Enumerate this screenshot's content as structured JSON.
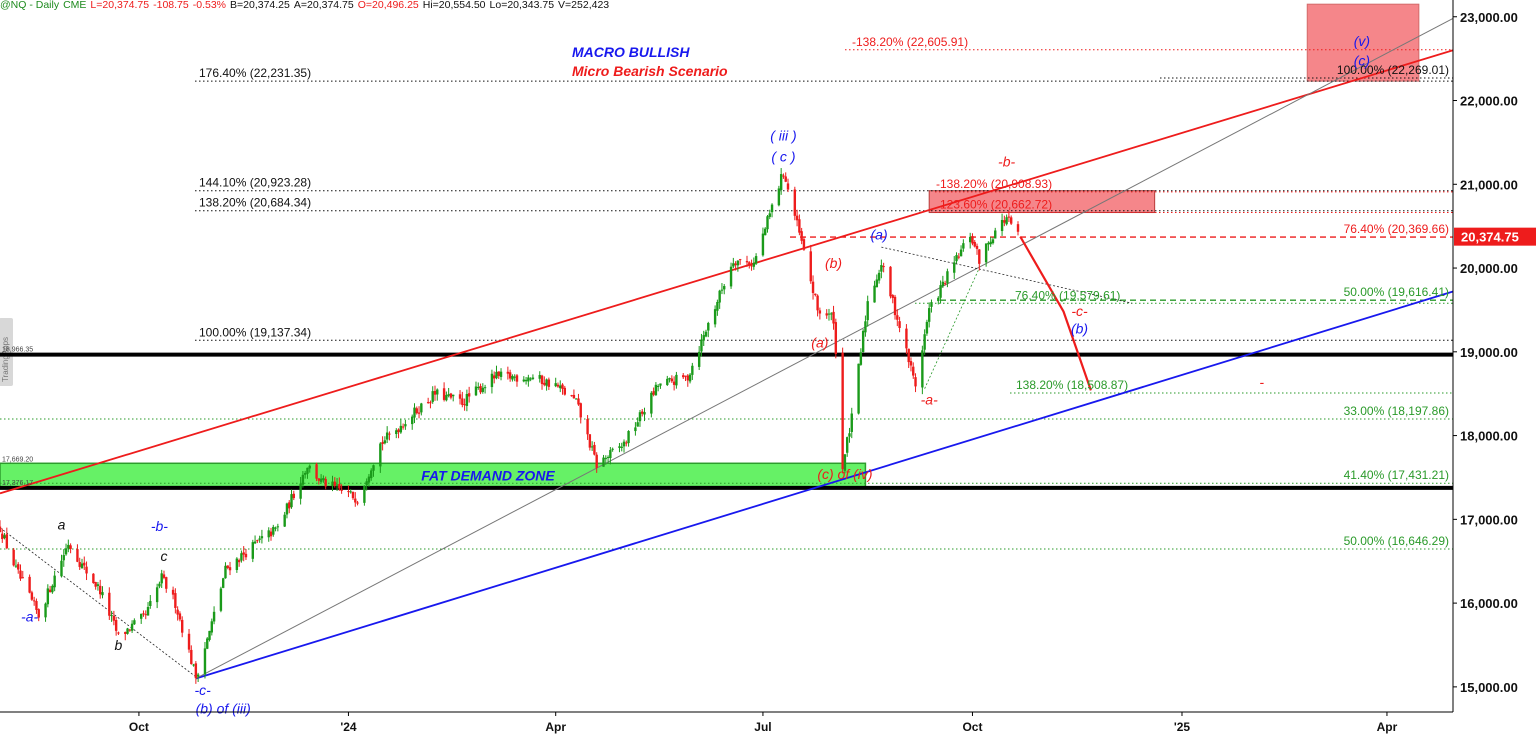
{
  "header": {
    "symbol": "@NQ - Daily",
    "exchange": "CME",
    "last": "L=20,374.75",
    "change": "-108.75",
    "change_pct": "-0.53%",
    "bid": "B=20,374.25",
    "ask": "A=20,374.75",
    "open": "O=20,496.25",
    "high": "Hi=20,554.50",
    "low": "Lo=20,343.75",
    "volume": "V=252,423"
  },
  "watermark": "TradingApps",
  "colors": {
    "red": "#ee1c1c",
    "blue": "#1818ee",
    "green": "#2a9a2a",
    "demand_zone": "#66f166",
    "target_box": "#f5868a",
    "price_tag": "#ee1c1c"
  },
  "chart_data": {
    "type": "candlestick",
    "y_axis": {
      "range": [
        14700,
        23200
      ],
      "ticks": [
        {
          "value": 15000,
          "label": "15,000.00"
        },
        {
          "value": 16000,
          "label": "16,000.00"
        },
        {
          "value": 17000,
          "label": "17,000.00"
        },
        {
          "value": 18000,
          "label": "18,000.00"
        },
        {
          "value": 19000,
          "label": "19,000.00"
        },
        {
          "value": 20000,
          "label": "20,000.00"
        },
        {
          "value": 21000,
          "label": "21,000.00"
        },
        {
          "value": 22000,
          "label": "22,000.00"
        },
        {
          "value": 23000,
          "label": "23,000.00"
        }
      ]
    },
    "x_axis": {
      "range": [
        "2023-08-01",
        "2025-04-30"
      ],
      "ticks": [
        {
          "date": "2023-10-01",
          "label": "Oct"
        },
        {
          "date": "2024-01-01",
          "label": "'24"
        },
        {
          "date": "2024-04-01",
          "label": "Apr"
        },
        {
          "date": "2024-07-01",
          "label": "Jul"
        },
        {
          "date": "2024-10-01",
          "label": "Oct"
        },
        {
          "date": "2025-01-01",
          "label": "'25"
        },
        {
          "date": "2025-04-01",
          "label": "Apr"
        }
      ]
    },
    "last_price": {
      "value": 20374.75,
      "label": "20,374.75"
    },
    "titles": [
      {
        "text": "MACRO BULLISH",
        "color": "#1818ee"
      },
      {
        "text": "Micro Bearish Scenario",
        "color": "#ee1c1c"
      }
    ],
    "price_path": [
      [
        "2023-08-01",
        16900
      ],
      [
        "2023-08-08",
        16400
      ],
      [
        "2023-08-18",
        15850
      ],
      [
        "2023-08-31",
        16720
      ],
      [
        "2023-09-06",
        16450
      ],
      [
        "2023-09-14",
        16150
      ],
      [
        "2023-09-22",
        15600
      ],
      [
        "2023-10-04",
        15850
      ],
      [
        "2023-10-11",
        16300
      ],
      [
        "2023-10-17",
        16000
      ],
      [
        "2023-10-26",
        15120
      ],
      [
        "2023-11-01",
        15650
      ],
      [
        "2023-11-08",
        16400
      ],
      [
        "2023-11-21",
        16700
      ],
      [
        "2023-12-01",
        16900
      ],
      [
        "2023-12-14",
        17650
      ],
      [
        "2023-12-20",
        17450
      ],
      [
        "2024-01-05",
        17250
      ],
      [
        "2024-01-15",
        17900
      ],
      [
        "2024-01-31",
        18300
      ],
      [
        "2024-02-08",
        18500
      ],
      [
        "2024-02-20",
        18400
      ],
      [
        "2024-03-05",
        18700
      ],
      [
        "2024-03-21",
        18700
      ],
      [
        "2024-04-01",
        18600
      ],
      [
        "2024-04-10",
        18400
      ],
      [
        "2024-04-19",
        17650
      ],
      [
        "2024-05-01",
        17900
      ],
      [
        "2024-05-16",
        18600
      ],
      [
        "2024-05-29",
        18700
      ],
      [
        "2024-06-18",
        20100
      ],
      [
        "2024-06-27",
        20050
      ],
      [
        "2024-07-10",
        21150
      ],
      [
        "2024-07-18",
        20300
      ],
      [
        "2024-07-25",
        19500
      ],
      [
        "2024-08-01",
        19400
      ],
      [
        "2024-08-05",
        17650
      ],
      [
        "2024-08-09",
        18200
      ],
      [
        "2024-08-16",
        19600
      ],
      [
        "2024-08-22",
        20050
      ],
      [
        "2024-08-28",
        19500
      ],
      [
        "2024-09-06",
        18600
      ],
      [
        "2024-09-12",
        19500
      ],
      [
        "2024-09-20",
        19900
      ],
      [
        "2024-09-30",
        20400
      ],
      [
        "2024-10-04",
        20100
      ],
      [
        "2024-10-11",
        20450
      ],
      [
        "2024-10-16",
        20600
      ],
      [
        "2024-10-21",
        20375
      ]
    ],
    "projection": [
      {
        "date": "2024-10-22",
        "value": 20375
      },
      {
        "date": "2024-11-10",
        "value": 19480
      },
      {
        "date": "2024-11-22",
        "value": 18540
      }
    ],
    "horizontal_levels": [
      {
        "label": "176.40% (22,231.35)",
        "value": 22231.35,
        "color": "#111111",
        "style": "dotted",
        "label_side": "left"
      },
      {
        "label": "144.10% (20,923.28)",
        "value": 20923.28,
        "color": "#111111",
        "style": "dotted",
        "label_side": "left"
      },
      {
        "label": "138.20% (20,684.34)",
        "value": 20684.34,
        "color": "#111111",
        "style": "dotted",
        "label_side": "left"
      },
      {
        "label": "100.00% (19,137.34)",
        "value": 19137.34,
        "color": "#111111",
        "style": "dotted",
        "label_side": "left"
      },
      {
        "label": "-138.20% (22,605.91)",
        "value": 22605.91,
        "color": "#ee1c1c",
        "style": "dotted",
        "label_side": "left"
      },
      {
        "label": "100.00% (22,269.01)",
        "value": 22269.01,
        "color": "#111111",
        "style": "dotted",
        "label_side": "right"
      },
      {
        "label": "-138.20% (20,908.93)",
        "value": 20908.93,
        "color": "#ee1c1c",
        "style": "dotted",
        "label_side": "left"
      },
      {
        "label": "123.60% (20,662.72)",
        "value": 20662.72,
        "color": "#ee1c1c",
        "style": "dotted",
        "label_side": "left"
      },
      {
        "label": "76.40% (20,369.66)",
        "value": 20369.66,
        "color": "#ee1c1c",
        "style": "dashed",
        "label_side": "right"
      },
      {
        "label": "76.40% (19,579.61)",
        "value": 19579.61,
        "color": "#2a9a2a",
        "style": "dotted",
        "label_side": "left"
      },
      {
        "label": "50.00% (19,616.41)",
        "value": 19616.41,
        "color": "#2a9a2a",
        "style": "dashed",
        "label_side": "right"
      },
      {
        "label": "138.20% (18,508.87)",
        "value": 18508.87,
        "color": "#2a9a2a",
        "style": "dotted",
        "label_side": "left"
      },
      {
        "label": "33.00% (18,197.86)",
        "value": 18197.86,
        "color": "#2a9a2a",
        "style": "dotted",
        "label_side": "right"
      },
      {
        "label": "41.40% (17,431.21)",
        "value": 17431.21,
        "color": "#2a9a2a",
        "style": "dotted",
        "label_side": "right"
      },
      {
        "label": "50.00% (16,646.29)",
        "value": 16646.29,
        "color": "#2a9a2a",
        "style": "dotted",
        "label_side": "right"
      }
    ],
    "thick_levels": [
      {
        "label": "18,966.35",
        "value": 18966.35
      },
      {
        "label": "17,376.17",
        "value": 17376.17
      }
    ],
    "demand_zone": {
      "label": "FAT DEMAND ZONE",
      "top": 17669.2,
      "bottom": 17376.17,
      "top_label": "17,669.20",
      "start": "2023-08-01",
      "end": "2024-08-15"
    },
    "resistance_box": {
      "top": 20923.28,
      "bottom": 20662.72,
      "start": "2024-09-12",
      "end": "2024-12-20"
    },
    "target_box": {
      "top": 23150,
      "bottom": 22231.35,
      "start": "2025-02-25",
      "end": "2025-04-15"
    },
    "trendlines": [
      {
        "color": "#ee1c1c",
        "from": [
          "2023-08-01",
          17310
        ],
        "to": [
          "2025-04-30",
          22600
        ]
      },
      {
        "color": "#1818ee",
        "from": [
          "2023-10-26",
          15100
        ],
        "to": [
          "2025-04-30",
          19720
        ]
      },
      {
        "color": "#777777",
        "from": [
          "2023-10-26",
          15100
        ],
        "to": [
          "2025-04-30",
          22980
        ]
      }
    ],
    "wave_labels": [
      {
        "text": "a",
        "date": "2023-08-28",
        "value": 16880,
        "color": "#111111"
      },
      {
        "text": "-b-",
        "date": "2023-10-10",
        "value": 16860,
        "color": "#1818ee"
      },
      {
        "text": "c",
        "date": "2023-10-12",
        "value": 16500,
        "color": "#111111"
      },
      {
        "text": "-a-",
        "date": "2023-08-14",
        "value": 15780,
        "color": "#1818ee"
      },
      {
        "text": "b",
        "date": "2023-09-22",
        "value": 15440,
        "color": "#111111"
      },
      {
        "text": "-c-",
        "date": "2023-10-29",
        "value": 14900,
        "color": "#1818ee"
      },
      {
        "text": "(b) of (iii)",
        "date": "2023-11-07",
        "value": 14680,
        "color": "#1818ee"
      },
      {
        "text": "( iii )",
        "date": "2024-07-10",
        "value": 21520,
        "color": "#1818ee"
      },
      {
        "text": "( c )",
        "date": "2024-07-10",
        "value": 21270,
        "color": "#1818ee"
      },
      {
        "text": "(a)",
        "date": "2024-08-21",
        "value": 20340,
        "color": "#1818ee"
      },
      {
        "text": "(b)",
        "date": "2024-08-01",
        "value": 20000,
        "color": "#ee1c1c"
      },
      {
        "text": "(a)",
        "date": "2024-07-26",
        "value": 19050,
        "color": "#ee1c1c"
      },
      {
        "text": "-b-",
        "date": "2024-10-16",
        "value": 21210,
        "color": "#ee1c1c"
      },
      {
        "text": "-a-",
        "date": "2024-09-12",
        "value": 18370,
        "color": "#ee1c1c"
      },
      {
        "text": "-c-",
        "date": "2024-11-17",
        "value": 19430,
        "color": "#ee1c1c"
      },
      {
        "text": "(b)",
        "date": "2024-11-17",
        "value": 19220,
        "color": "#1818ee"
      },
      {
        "text": "-",
        "date": "2025-02-05",
        "value": 18580,
        "color": "#ee1c1c"
      },
      {
        "text": "(c) of (iv)",
        "date": "2024-08-06",
        "value": 17480,
        "color": "#ee1c1c"
      },
      {
        "text": "(v)",
        "date": "2025-03-21",
        "value": 22650,
        "color": "#1818ee"
      },
      {
        "text": "(c)",
        "date": "2025-03-21",
        "value": 22420,
        "color": "#1818ee"
      }
    ]
  }
}
